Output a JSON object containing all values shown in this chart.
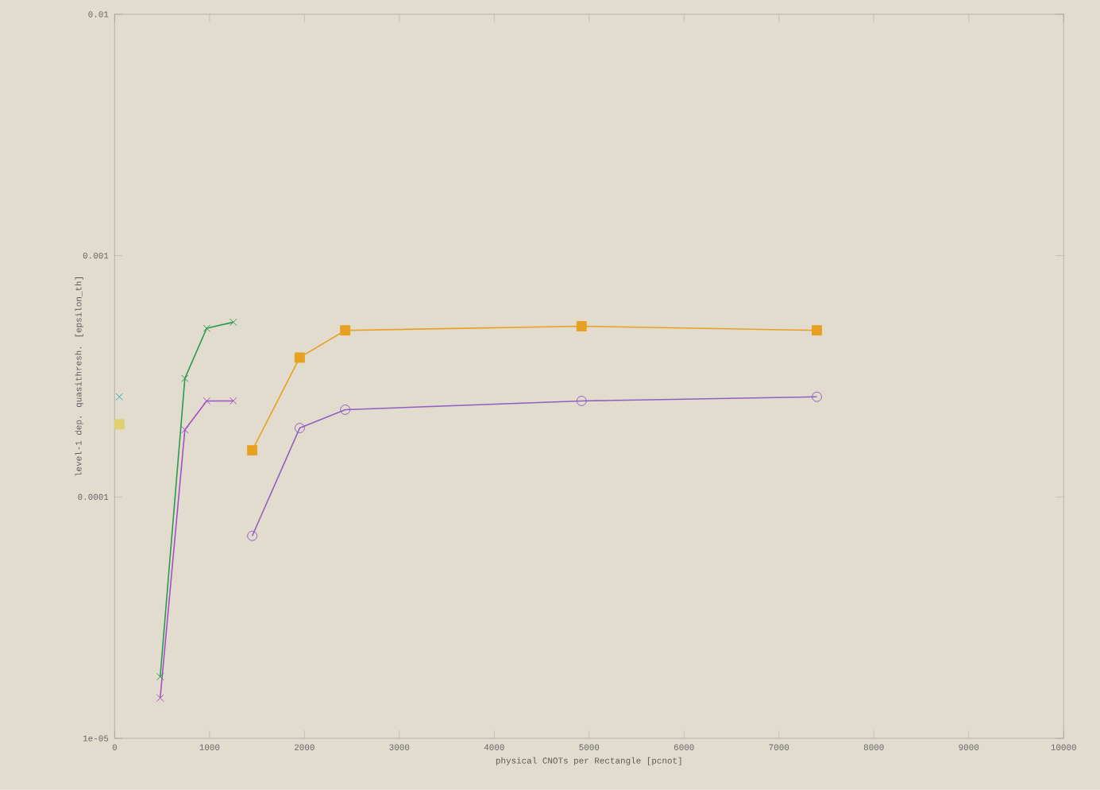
{
  "chart_data": {
    "type": "line",
    "xlabel": "physical CNOTs per Rectangle [pcnot]",
    "ylabel": "level-1 dep. quasithresh. [epsilon_th]",
    "log": "y",
    "xlim": [
      0,
      10000
    ],
    "ylim": [
      1e-05,
      0.01
    ],
    "xticks": [
      0,
      1000,
      2000,
      3000,
      4000,
      5000,
      6000,
      7000,
      8000,
      9000,
      10000
    ],
    "yticks": [
      {
        "value": 1e-05,
        "label": "1e-05"
      },
      0.0001,
      0.001,
      0.01
    ],
    "series": [
      {
        "color": "#2a9a50",
        "marker": "cross",
        "x": [
          480,
          740,
          970,
          1250
        ],
        "values": [
          1.8e-05,
          0.00031,
          0.0005,
          0.00053
        ]
      },
      {
        "color": "#a050c8",
        "marker": "cross",
        "x": [
          480,
          740,
          970,
          1250
        ],
        "values": [
          1.47e-05,
          0.00019,
          0.00025,
          0.00025
        ]
      },
      {
        "color": "#30a8c0",
        "type": "scatter",
        "marker": "cross",
        "x": [
          50
        ],
        "values": [
          0.00026
        ]
      },
      {
        "color": "#e0d070",
        "type": "scatter",
        "marker": "square",
        "x": [
          50
        ],
        "values": [
          0.0002
        ]
      },
      {
        "color": "#e8a020",
        "marker": "square",
        "x": [
          1450,
          1950,
          2430,
          4920,
          7400
        ],
        "values": [
          0.000156,
          0.000378,
          0.00049,
          0.00051,
          0.00049
        ]
      },
      {
        "color": "#9060c0",
        "marker": "circle",
        "x": [
          1450,
          1950,
          2430,
          4920,
          7400
        ],
        "values": [
          6.9e-05,
          0.000193,
          0.00023,
          0.00025,
          0.00026
        ]
      }
    ]
  }
}
